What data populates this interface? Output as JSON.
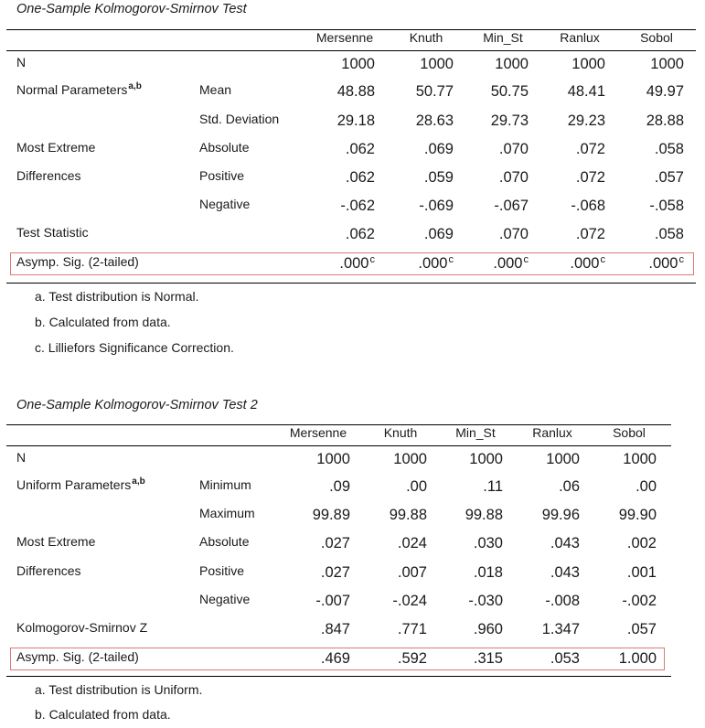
{
  "tables": [
    {
      "title": "One-Sample Kolmogorov-Smirnov Test",
      "columns": [
        "Mersenne",
        "Knuth",
        "Min_St",
        "Ranlux",
        "Sobol"
      ],
      "rows": [
        {
          "label": "N",
          "sublabel": "",
          "values": [
            "1000",
            "1000",
            "1000",
            "1000",
            "1000"
          ],
          "sups": [
            "",
            "",
            "",
            "",
            ""
          ]
        },
        {
          "label": "Normal Parameters",
          "label_sup": "a,b",
          "sublabel": "Mean",
          "values": [
            "48.88",
            "50.77",
            "50.75",
            "48.41",
            "49.97"
          ],
          "sups": [
            "",
            "",
            "",
            "",
            ""
          ]
        },
        {
          "label": "",
          "sublabel": "Std. Deviation",
          "values": [
            "29.18",
            "28.63",
            "29.73",
            "29.23",
            "28.88"
          ],
          "sups": [
            "",
            "",
            "",
            "",
            ""
          ]
        },
        {
          "label": "Most Extreme",
          "sublabel": "Absolute",
          "values": [
            ".062",
            ".069",
            ".070",
            ".072",
            ".058"
          ],
          "sups": [
            "",
            "",
            "",
            "",
            ""
          ]
        },
        {
          "label": "Differences",
          "sublabel": "Positive",
          "values": [
            ".062",
            ".059",
            ".070",
            ".072",
            ".057"
          ],
          "sups": [
            "",
            "",
            "",
            "",
            ""
          ]
        },
        {
          "label": "",
          "sublabel": "Negative",
          "values": [
            "-.062",
            "-.069",
            "-.067",
            "-.068",
            "-.058"
          ],
          "sups": [
            "",
            "",
            "",
            "",
            ""
          ]
        },
        {
          "label": "Test Statistic",
          "sublabel": "",
          "values": [
            ".062",
            ".069",
            ".070",
            ".072",
            ".058"
          ],
          "sups": [
            "",
            "",
            "",
            "",
            ""
          ]
        },
        {
          "label": "Asymp. Sig. (2-tailed)",
          "sublabel": "",
          "values": [
            ".000",
            ".000",
            ".000",
            ".000",
            ".000"
          ],
          "sups": [
            "c",
            "c",
            "c",
            "c",
            "c"
          ],
          "highlighted": true
        }
      ],
      "footnotes": [
        "a. Test distribution is Normal.",
        "b. Calculated from data.",
        "c. Lilliefors Significance Correction."
      ]
    },
    {
      "title": "One-Sample Kolmogorov-Smirnov Test 2",
      "columns": [
        "Mersenne",
        "Knuth",
        "Min_St",
        "Ranlux",
        "Sobol"
      ],
      "rows": [
        {
          "label": "N",
          "sublabel": "",
          "values": [
            "1000",
            "1000",
            "1000",
            "1000",
            "1000"
          ],
          "sups": [
            "",
            "",
            "",
            "",
            ""
          ]
        },
        {
          "label": "Uniform Parameters",
          "label_sup": "a,b",
          "sublabel": "Minimum",
          "values": [
            ".09",
            ".00",
            ".11",
            ".06",
            ".00"
          ],
          "sups": [
            "",
            "",
            "",
            "",
            ""
          ]
        },
        {
          "label": "",
          "sublabel": "Maximum",
          "values": [
            "99.89",
            "99.88",
            "99.88",
            "99.96",
            "99.90"
          ],
          "sups": [
            "",
            "",
            "",
            "",
            ""
          ]
        },
        {
          "label": "Most Extreme",
          "sublabel": "Absolute",
          "values": [
            ".027",
            ".024",
            ".030",
            ".043",
            ".002"
          ],
          "sups": [
            "",
            "",
            "",
            "",
            ""
          ]
        },
        {
          "label": "Differences",
          "sublabel": "Positive",
          "values": [
            ".027",
            ".007",
            ".018",
            ".043",
            ".001"
          ],
          "sups": [
            "",
            "",
            "",
            "",
            ""
          ]
        },
        {
          "label": "",
          "sublabel": "Negative",
          "values": [
            "-.007",
            "-.024",
            "-.030",
            "-.008",
            "-.002"
          ],
          "sups": [
            "",
            "",
            "",
            "",
            ""
          ]
        },
        {
          "label": "Kolmogorov-Smirnov Z",
          "sublabel": "",
          "values": [
            ".847",
            ".771",
            ".960",
            "1.347",
            ".057"
          ],
          "sups": [
            "",
            "",
            "",
            "",
            ""
          ]
        },
        {
          "label": "Asymp. Sig. (2-tailed)",
          "sublabel": "",
          "values": [
            ".469",
            ".592",
            ".315",
            ".053",
            "1.000"
          ],
          "sups": [
            "",
            "",
            "",
            "",
            ""
          ],
          "highlighted": true
        }
      ],
      "footnotes": [
        "a. Test distribution is Uniform.",
        "b. Calculated from data."
      ]
    }
  ]
}
